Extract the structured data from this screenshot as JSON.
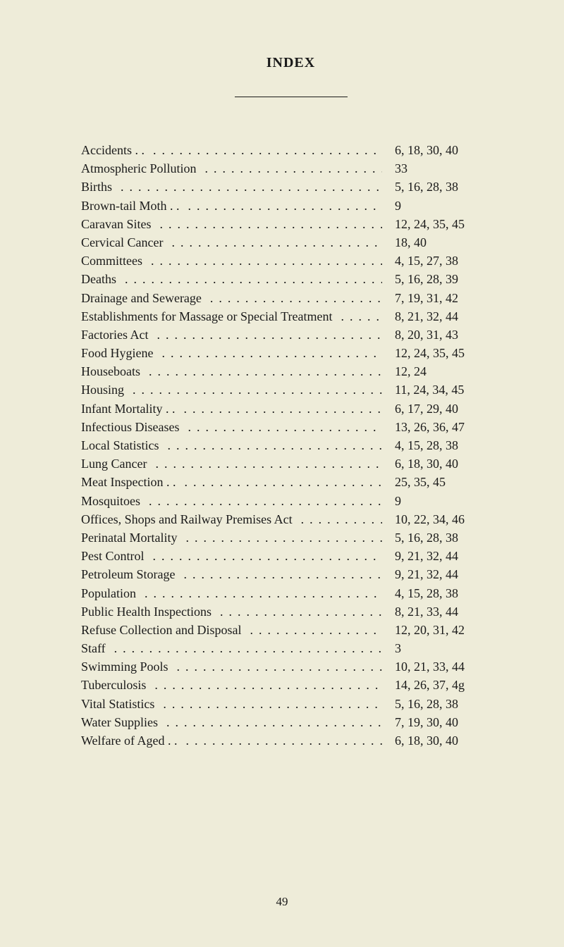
{
  "title": "INDEX",
  "dots_fill": ".......................................",
  "page_number": "49",
  "entries": [
    {
      "label": "Accidents  . .",
      "pages": "6, 18, 30, 40"
    },
    {
      "label": "Atmospheric Pollution",
      "pages": "33"
    },
    {
      "label": "Births",
      "pages": "5, 16, 28, 38"
    },
    {
      "label": "Brown-tail Moth  . .",
      "pages": "9"
    },
    {
      "label": "Caravan Sites",
      "pages": "12, 24, 35, 45"
    },
    {
      "label": "Cervical Cancer",
      "pages": "18, 40"
    },
    {
      "label": "Committees",
      "pages": "4, 15, 27, 38"
    },
    {
      "label": "Deaths",
      "pages": "5, 16, 28, 39"
    },
    {
      "label": "Drainage and Sewerage",
      "pages": "7, 19, 31, 42"
    },
    {
      "label": "Establishments for Massage or Special Treatment",
      "pages": "8, 21, 32, 44"
    },
    {
      "label": "Factories Act",
      "pages": "8, 20, 31, 43"
    },
    {
      "label": "Food Hygiene",
      "pages": "12, 24, 35, 45"
    },
    {
      "label": "Houseboats",
      "pages": "12, 24"
    },
    {
      "label": "Housing",
      "pages": "11, 24, 34, 45"
    },
    {
      "label": "Infant Mortality  . .",
      "pages": "6, 17, 29, 40"
    },
    {
      "label": "Infectious Diseases",
      "pages": "13, 26, 36, 47"
    },
    {
      "label": "Local Statistics",
      "pages": "4, 15, 28, 38"
    },
    {
      "label": "Lung Cancer",
      "pages": "6, 18, 30, 40"
    },
    {
      "label": "Meat Inspection  . .",
      "pages": "25, 35, 45"
    },
    {
      "label": "Mosquitoes",
      "pages": "9"
    },
    {
      "label": "Offices, Shops and Railway Premises Act",
      "pages": "10, 22, 34, 46"
    },
    {
      "label": "Perinatal Mortality",
      "pages": "5, 16, 28, 38"
    },
    {
      "label": "Pest Control",
      "pages": "9, 21, 32, 44"
    },
    {
      "label": "Petroleum Storage",
      "pages": "9, 21, 32, 44"
    },
    {
      "label": "Population",
      "pages": "4, 15, 28, 38"
    },
    {
      "label": "Public Health Inspections",
      "pages": "8, 21, 33, 44"
    },
    {
      "label": "Refuse Collection and Disposal",
      "pages": "12, 20, 31, 42"
    },
    {
      "label": "Staff",
      "pages": "3"
    },
    {
      "label": "Swimming Pools",
      "pages": "10, 21, 33, 44"
    },
    {
      "label": "Tuberculosis",
      "pages": "14, 26, 37, 4g"
    },
    {
      "label": "Vital Statistics",
      "pages": "5, 16, 28, 38"
    },
    {
      "label": "Water Supplies",
      "pages": "7, 19, 30, 40"
    },
    {
      "label": "Welfare of Aged  . .",
      "pages": "6, 18, 30, 40"
    }
  ]
}
